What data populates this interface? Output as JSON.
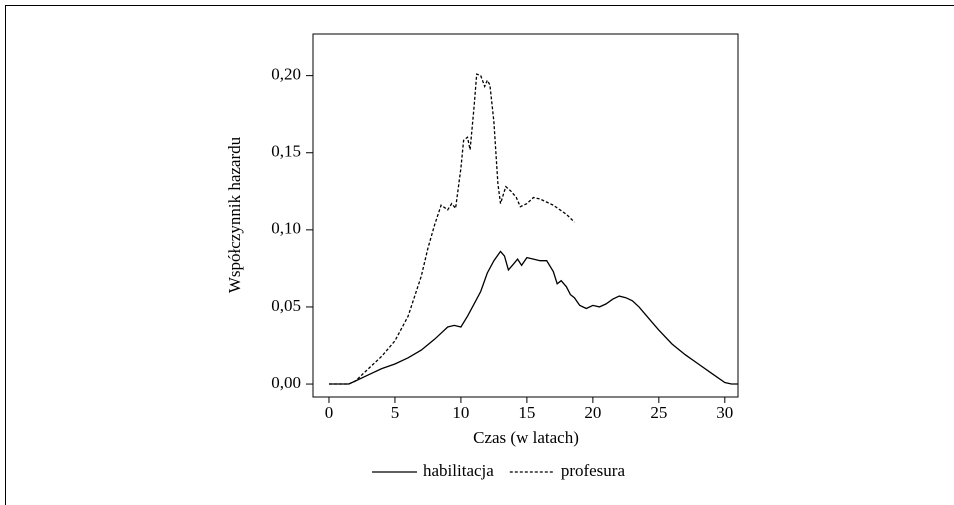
{
  "chart_data": {
    "type": "line",
    "xlabel": "Czas (w latach)",
    "ylabel": "Współczynnik hazardu",
    "xlim": [
      -1.21,
      31
    ],
    "ylim": [
      -0.0084,
      0.227
    ],
    "xticks": [
      0,
      5,
      10,
      15,
      20,
      25,
      30
    ],
    "yticks": [
      {
        "value": 0,
        "label": "0,00"
      },
      {
        "value": 0.05,
        "label": "0,05"
      },
      {
        "value": 0.1,
        "label": "0,10"
      },
      {
        "value": 0.15,
        "label": "0,15"
      },
      {
        "value": 0.2,
        "label": "0,20"
      }
    ],
    "grid": false,
    "legend": "bottom",
    "series": [
      {
        "name": "habilitacja",
        "color": "#000000",
        "dash": "solid",
        "x": [
          0,
          1,
          1.5,
          2,
          3,
          4,
          5,
          6,
          7,
          8,
          8.5,
          9,
          9.5,
          10,
          10.5,
          11,
          11.5,
          12,
          12.5,
          13,
          13.3,
          13.6,
          14,
          14.3,
          14.6,
          15,
          15.5,
          16,
          16.5,
          17,
          17.3,
          17.6,
          18,
          18.3,
          18.6,
          19,
          19.5,
          20,
          20.5,
          21,
          21.5,
          22,
          22.5,
          23,
          23.5,
          24,
          24.5,
          25,
          26,
          27,
          28,
          29,
          30,
          30.5,
          31
        ],
        "values": [
          0,
          0,
          0,
          0.002,
          0.006,
          0.01,
          0.013,
          0.017,
          0.022,
          0.029,
          0.033,
          0.037,
          0.038,
          0.037,
          0.044,
          0.052,
          0.06,
          0.072,
          0.08,
          0.086,
          0.083,
          0.074,
          0.078,
          0.081,
          0.077,
          0.082,
          0.081,
          0.08,
          0.08,
          0.073,
          0.065,
          0.067,
          0.063,
          0.058,
          0.056,
          0.051,
          0.049,
          0.051,
          0.05,
          0.052,
          0.055,
          0.057,
          0.056,
          0.054,
          0.05,
          0.045,
          0.04,
          0.035,
          0.026,
          0.019,
          0.013,
          0.007,
          0.001,
          0,
          0
        ]
      },
      {
        "name": "profesura",
        "color": "#000000",
        "dash": "dashed",
        "x": [
          0,
          1,
          1.5,
          2,
          3,
          4,
          5,
          6,
          7,
          7.5,
          8,
          8.5,
          9,
          9.3,
          9.6,
          10,
          10.2,
          10.5,
          10.7,
          11,
          11.2,
          11.5,
          11.8,
          12,
          12.2,
          12.5,
          12.8,
          13,
          13.4,
          13.8,
          14.2,
          14.5,
          15,
          15.5,
          16,
          17,
          18,
          18.6
        ],
        "values": [
          0,
          0,
          0,
          0.002,
          0.01,
          0.018,
          0.028,
          0.044,
          0.07,
          0.088,
          0.103,
          0.116,
          0.113,
          0.117,
          0.114,
          0.14,
          0.158,
          0.16,
          0.152,
          0.18,
          0.201,
          0.2,
          0.193,
          0.197,
          0.194,
          0.17,
          0.13,
          0.117,
          0.128,
          0.125,
          0.121,
          0.115,
          0.117,
          0.121,
          0.12,
          0.116,
          0.11,
          0.105
        ]
      }
    ]
  }
}
